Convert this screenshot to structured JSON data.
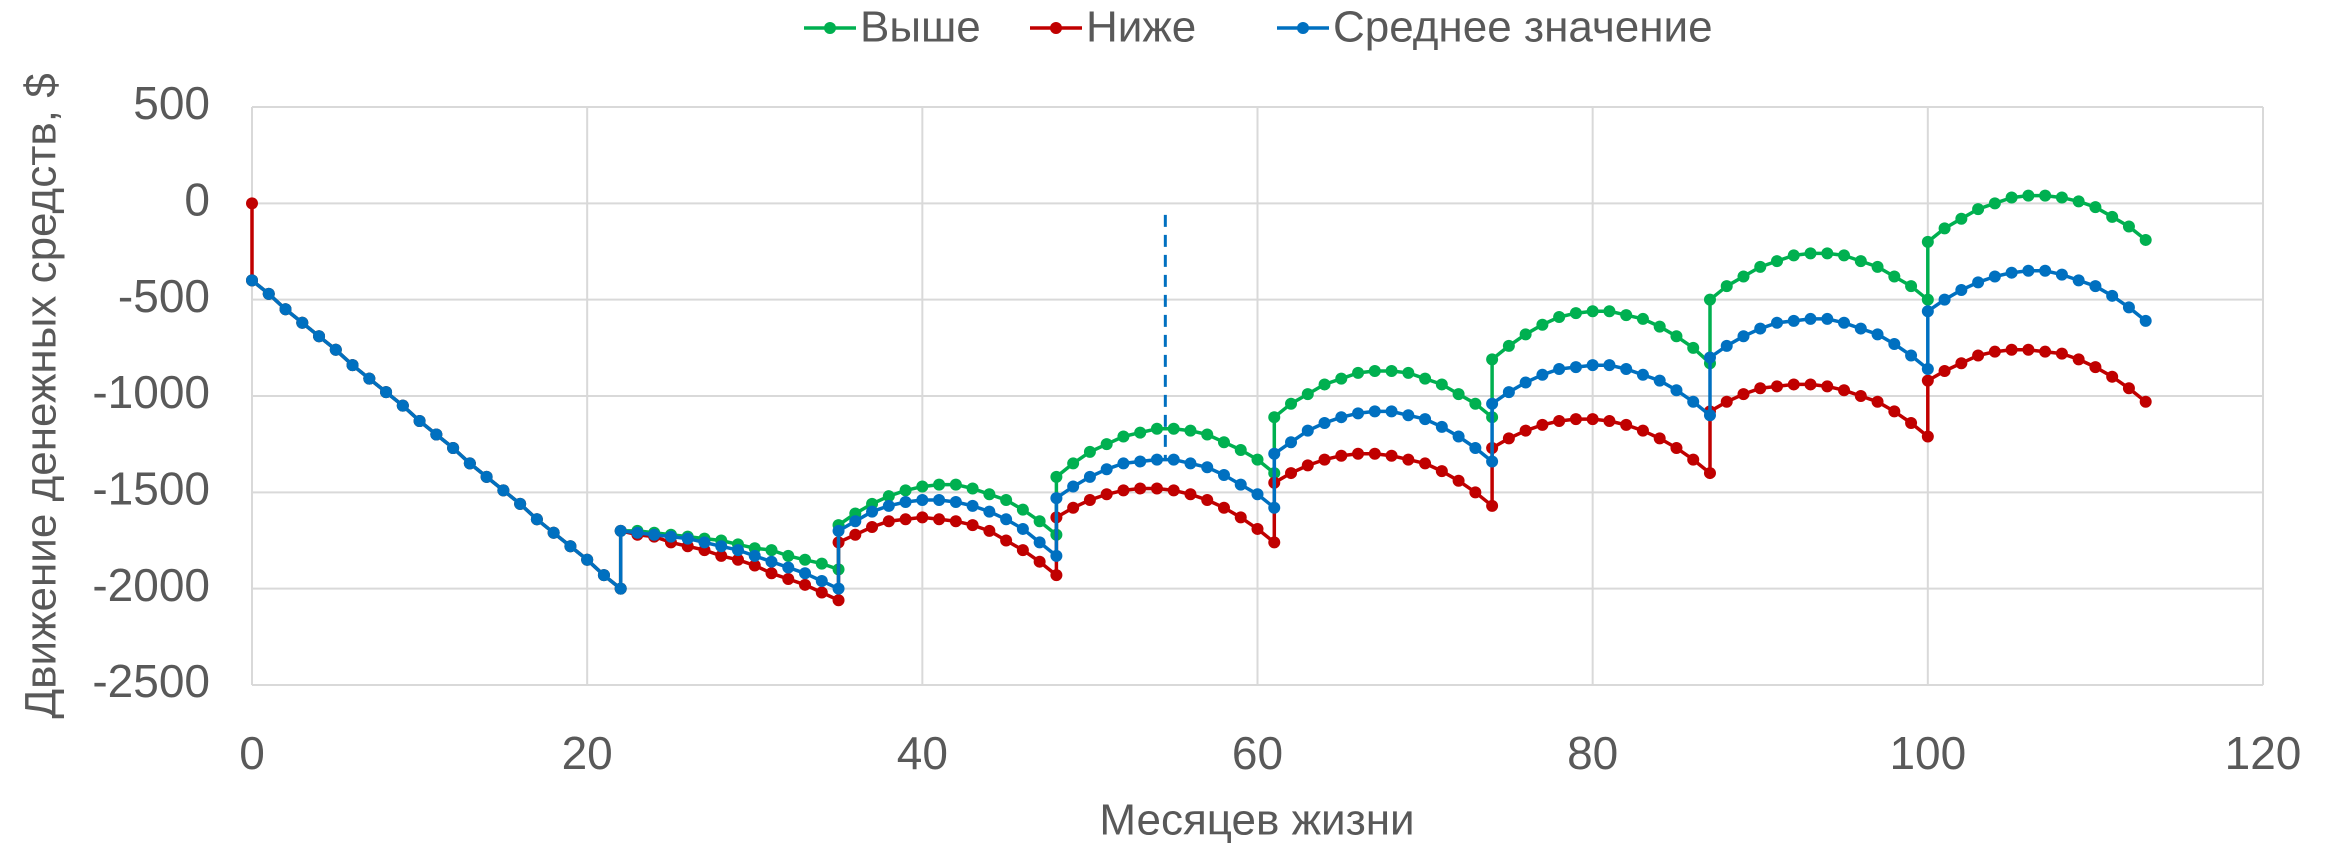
{
  "chart_data": {
    "type": "line",
    "x_label": "Месяцев жизни",
    "y_label": "Движение денежных средств, $",
    "xlim": [
      0,
      120
    ],
    "xticks": [
      0,
      20,
      40,
      60,
      80,
      100,
      120
    ],
    "ylim": [
      -2500,
      500
    ],
    "yticks": [
      -2500,
      -2000,
      -1500,
      -1000,
      -500,
      0,
      500
    ],
    "grid": true,
    "legend": "top",
    "x": [
      0,
      0,
      1,
      2,
      3,
      4,
      5,
      6,
      7,
      8,
      9,
      10,
      11,
      12,
      13,
      14,
      15,
      16,
      17,
      18,
      19,
      20,
      21,
      22,
      22,
      23,
      24,
      25,
      26,
      27,
      28,
      29,
      30,
      31,
      32,
      33,
      34,
      35,
      35,
      36,
      37,
      38,
      39,
      40,
      41,
      42,
      43,
      44,
      45,
      46,
      47,
      48,
      48,
      49,
      50,
      51,
      52,
      53,
      54,
      55,
      56,
      57,
      58,
      59,
      60,
      61,
      61,
      62,
      63,
      64,
      65,
      66,
      67,
      68,
      69,
      70,
      71,
      72,
      73,
      74,
      74,
      75,
      76,
      77,
      78,
      79,
      80,
      81,
      82,
      83,
      84,
      85,
      86,
      87,
      87,
      88,
      89,
      90,
      91,
      92,
      93,
      94,
      95,
      96,
      97,
      98,
      99,
      100,
      100,
      101,
      102,
      103,
      104,
      105,
      106,
      107,
      108,
      109,
      110,
      111,
      112,
      113
    ],
    "series": [
      {
        "name": "Выше",
        "color": "#00b050",
        "values": [
          null,
          -400,
          -470,
          -550,
          -620,
          -690,
          -760,
          -840,
          -910,
          -980,
          -1050,
          -1130,
          -1200,
          -1270,
          -1350,
          -1420,
          -1490,
          -1560,
          -1640,
          -1710,
          -1780,
          -1850,
          -1930,
          -2000,
          -1700,
          -1700,
          -1710,
          -1720,
          -1730,
          -1740,
          -1750,
          -1770,
          -1790,
          -1800,
          -1830,
          -1850,
          -1870,
          -1900,
          -1670,
          -1610,
          -1560,
          -1520,
          -1490,
          -1470,
          -1460,
          -1460,
          -1480,
          -1510,
          -1540,
          -1590,
          -1650,
          -1720,
          -1420,
          -1350,
          -1290,
          -1250,
          -1210,
          -1190,
          -1170,
          -1170,
          -1180,
          -1200,
          -1240,
          -1280,
          -1330,
          -1400,
          -1110,
          -1040,
          -990,
          -940,
          -910,
          -880,
          -870,
          -870,
          -880,
          -910,
          -940,
          -990,
          -1040,
          -1110,
          -810,
          -740,
          -680,
          -630,
          -590,
          -570,
          -560,
          -560,
          -580,
          -600,
          -640,
          -690,
          -750,
          -830,
          -500,
          -430,
          -380,
          -330,
          -300,
          -270,
          -260,
          -260,
          -270,
          -300,
          -330,
          -380,
          -430,
          -500,
          -200,
          -130,
          -80,
          -30,
          0,
          30,
          40,
          40,
          30,
          10,
          -20,
          -70,
          -120,
          -190
        ]
      },
      {
        "name": "Ниже",
        "color": "#c00000",
        "values": [
          0,
          -400,
          -470,
          -550,
          -620,
          -690,
          -760,
          -840,
          -910,
          -980,
          -1050,
          -1130,
          -1200,
          -1270,
          -1350,
          -1420,
          -1490,
          -1560,
          -1640,
          -1710,
          -1780,
          -1850,
          -1930,
          -2000,
          -1700,
          -1720,
          -1730,
          -1760,
          -1780,
          -1800,
          -1830,
          -1850,
          -1880,
          -1920,
          -1950,
          -1980,
          -2020,
          -2060,
          -1760,
          -1720,
          -1680,
          -1650,
          -1640,
          -1630,
          -1640,
          -1650,
          -1670,
          -1700,
          -1750,
          -1800,
          -1860,
          -1930,
          -1630,
          -1580,
          -1540,
          -1510,
          -1490,
          -1480,
          -1480,
          -1490,
          -1510,
          -1540,
          -1580,
          -1630,
          -1690,
          -1760,
          -1450,
          -1400,
          -1360,
          -1330,
          -1310,
          -1300,
          -1300,
          -1310,
          -1330,
          -1350,
          -1390,
          -1440,
          -1500,
          -1570,
          -1270,
          -1220,
          -1180,
          -1150,
          -1130,
          -1120,
          -1120,
          -1130,
          -1150,
          -1180,
          -1220,
          -1270,
          -1330,
          -1400,
          -1080,
          -1030,
          -990,
          -960,
          -950,
          -940,
          -940,
          -950,
          -970,
          -1000,
          -1030,
          -1080,
          -1140,
          -1210,
          -920,
          -870,
          -830,
          -790,
          -770,
          -760,
          -760,
          -770,
          -780,
          -810,
          -850,
          -900,
          -960,
          -1030
        ]
      },
      {
        "name": "Среднее значение",
        "color": "#0070c0",
        "values": [
          null,
          -400,
          -470,
          -550,
          -620,
          -690,
          -760,
          -840,
          -910,
          -980,
          -1050,
          -1130,
          -1200,
          -1270,
          -1350,
          -1420,
          -1490,
          -1560,
          -1640,
          -1710,
          -1780,
          -1850,
          -1930,
          -2000,
          -1700,
          -1710,
          -1720,
          -1730,
          -1740,
          -1760,
          -1780,
          -1800,
          -1830,
          -1860,
          -1890,
          -1920,
          -1960,
          -2000,
          -1700,
          -1650,
          -1600,
          -1570,
          -1550,
          -1540,
          -1540,
          -1550,
          -1570,
          -1600,
          -1640,
          -1690,
          -1760,
          -1830,
          -1530,
          -1470,
          -1420,
          -1380,
          -1350,
          -1340,
          -1330,
          -1330,
          -1350,
          -1370,
          -1410,
          -1460,
          -1510,
          -1580,
          -1300,
          -1240,
          -1180,
          -1140,
          -1110,
          -1090,
          -1080,
          -1080,
          -1100,
          -1120,
          -1160,
          -1210,
          -1270,
          -1340,
          -1040,
          -980,
          -930,
          -890,
          -860,
          -850,
          -840,
          -840,
          -860,
          -890,
          -920,
          -970,
          -1030,
          -1100,
          -800,
          -740,
          -690,
          -650,
          -620,
          -610,
          -600,
          -600,
          -620,
          -650,
          -680,
          -730,
          -790,
          -860,
          -560,
          -500,
          -450,
          -410,
          -380,
          -360,
          -350,
          -350,
          -370,
          -400,
          -430,
          -480,
          -540,
          -610
        ]
      }
    ],
    "reference_line": {
      "x": 54.5,
      "y_top": -60,
      "y_bottom": -1330,
      "color": "#0070c0",
      "dashed": true
    }
  }
}
